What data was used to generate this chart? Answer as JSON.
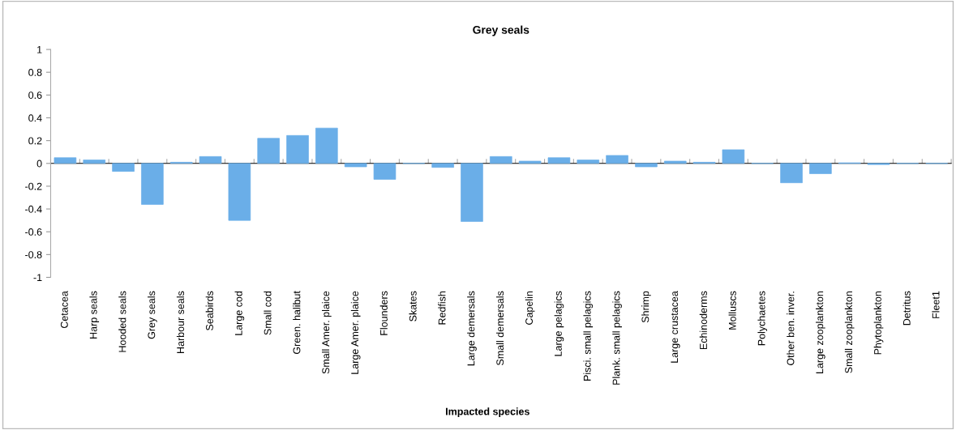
{
  "chart_data": {
    "type": "bar",
    "title": "Grey seals",
    "xlabel": "Impacted species",
    "categories": [
      "Cetacea",
      "Harp seals",
      "Hooded seals",
      "Grey seals",
      "Harbour seals",
      "Seabirds",
      "Large cod",
      "Small cod",
      "Green. halibut",
      "Small Amer. plaice",
      "Large Amer. plaice",
      "Flounders",
      "Skates",
      "Redfish",
      "Large demersals",
      "Small demersals",
      "Capelin",
      "Large pelagics",
      "Pisci. small pelagics",
      "Plank. small pelagics",
      "Shrimp",
      "Large crustacea",
      "Echinoderms",
      "Molluscs",
      "Polychaetes",
      "Other ben. inver.",
      "Large zooplankton",
      "Small zooplankton",
      "Phytoplankton",
      "Detritus",
      "Fleet1"
    ],
    "values": [
      0.05,
      0.03,
      -0.07,
      -0.36,
      0.01,
      0.06,
      -0.5,
      0.22,
      0.245,
      0.31,
      -0.03,
      -0.14,
      0,
      -0.035,
      -0.51,
      0.06,
      0.02,
      0.05,
      0.03,
      0.07,
      -0.03,
      0.02,
      0.01,
      0.12,
      0,
      -0.17,
      -0.09,
      0.005,
      -0.01,
      0,
      0
    ],
    "color": "#6aaee8",
    "ylim": [
      -1,
      1
    ],
    "yticks": [
      -1,
      -0.8,
      -0.6,
      -0.4,
      -0.2,
      0,
      0.2,
      0.4,
      0.6,
      0.8,
      1
    ],
    "legend": false
  }
}
